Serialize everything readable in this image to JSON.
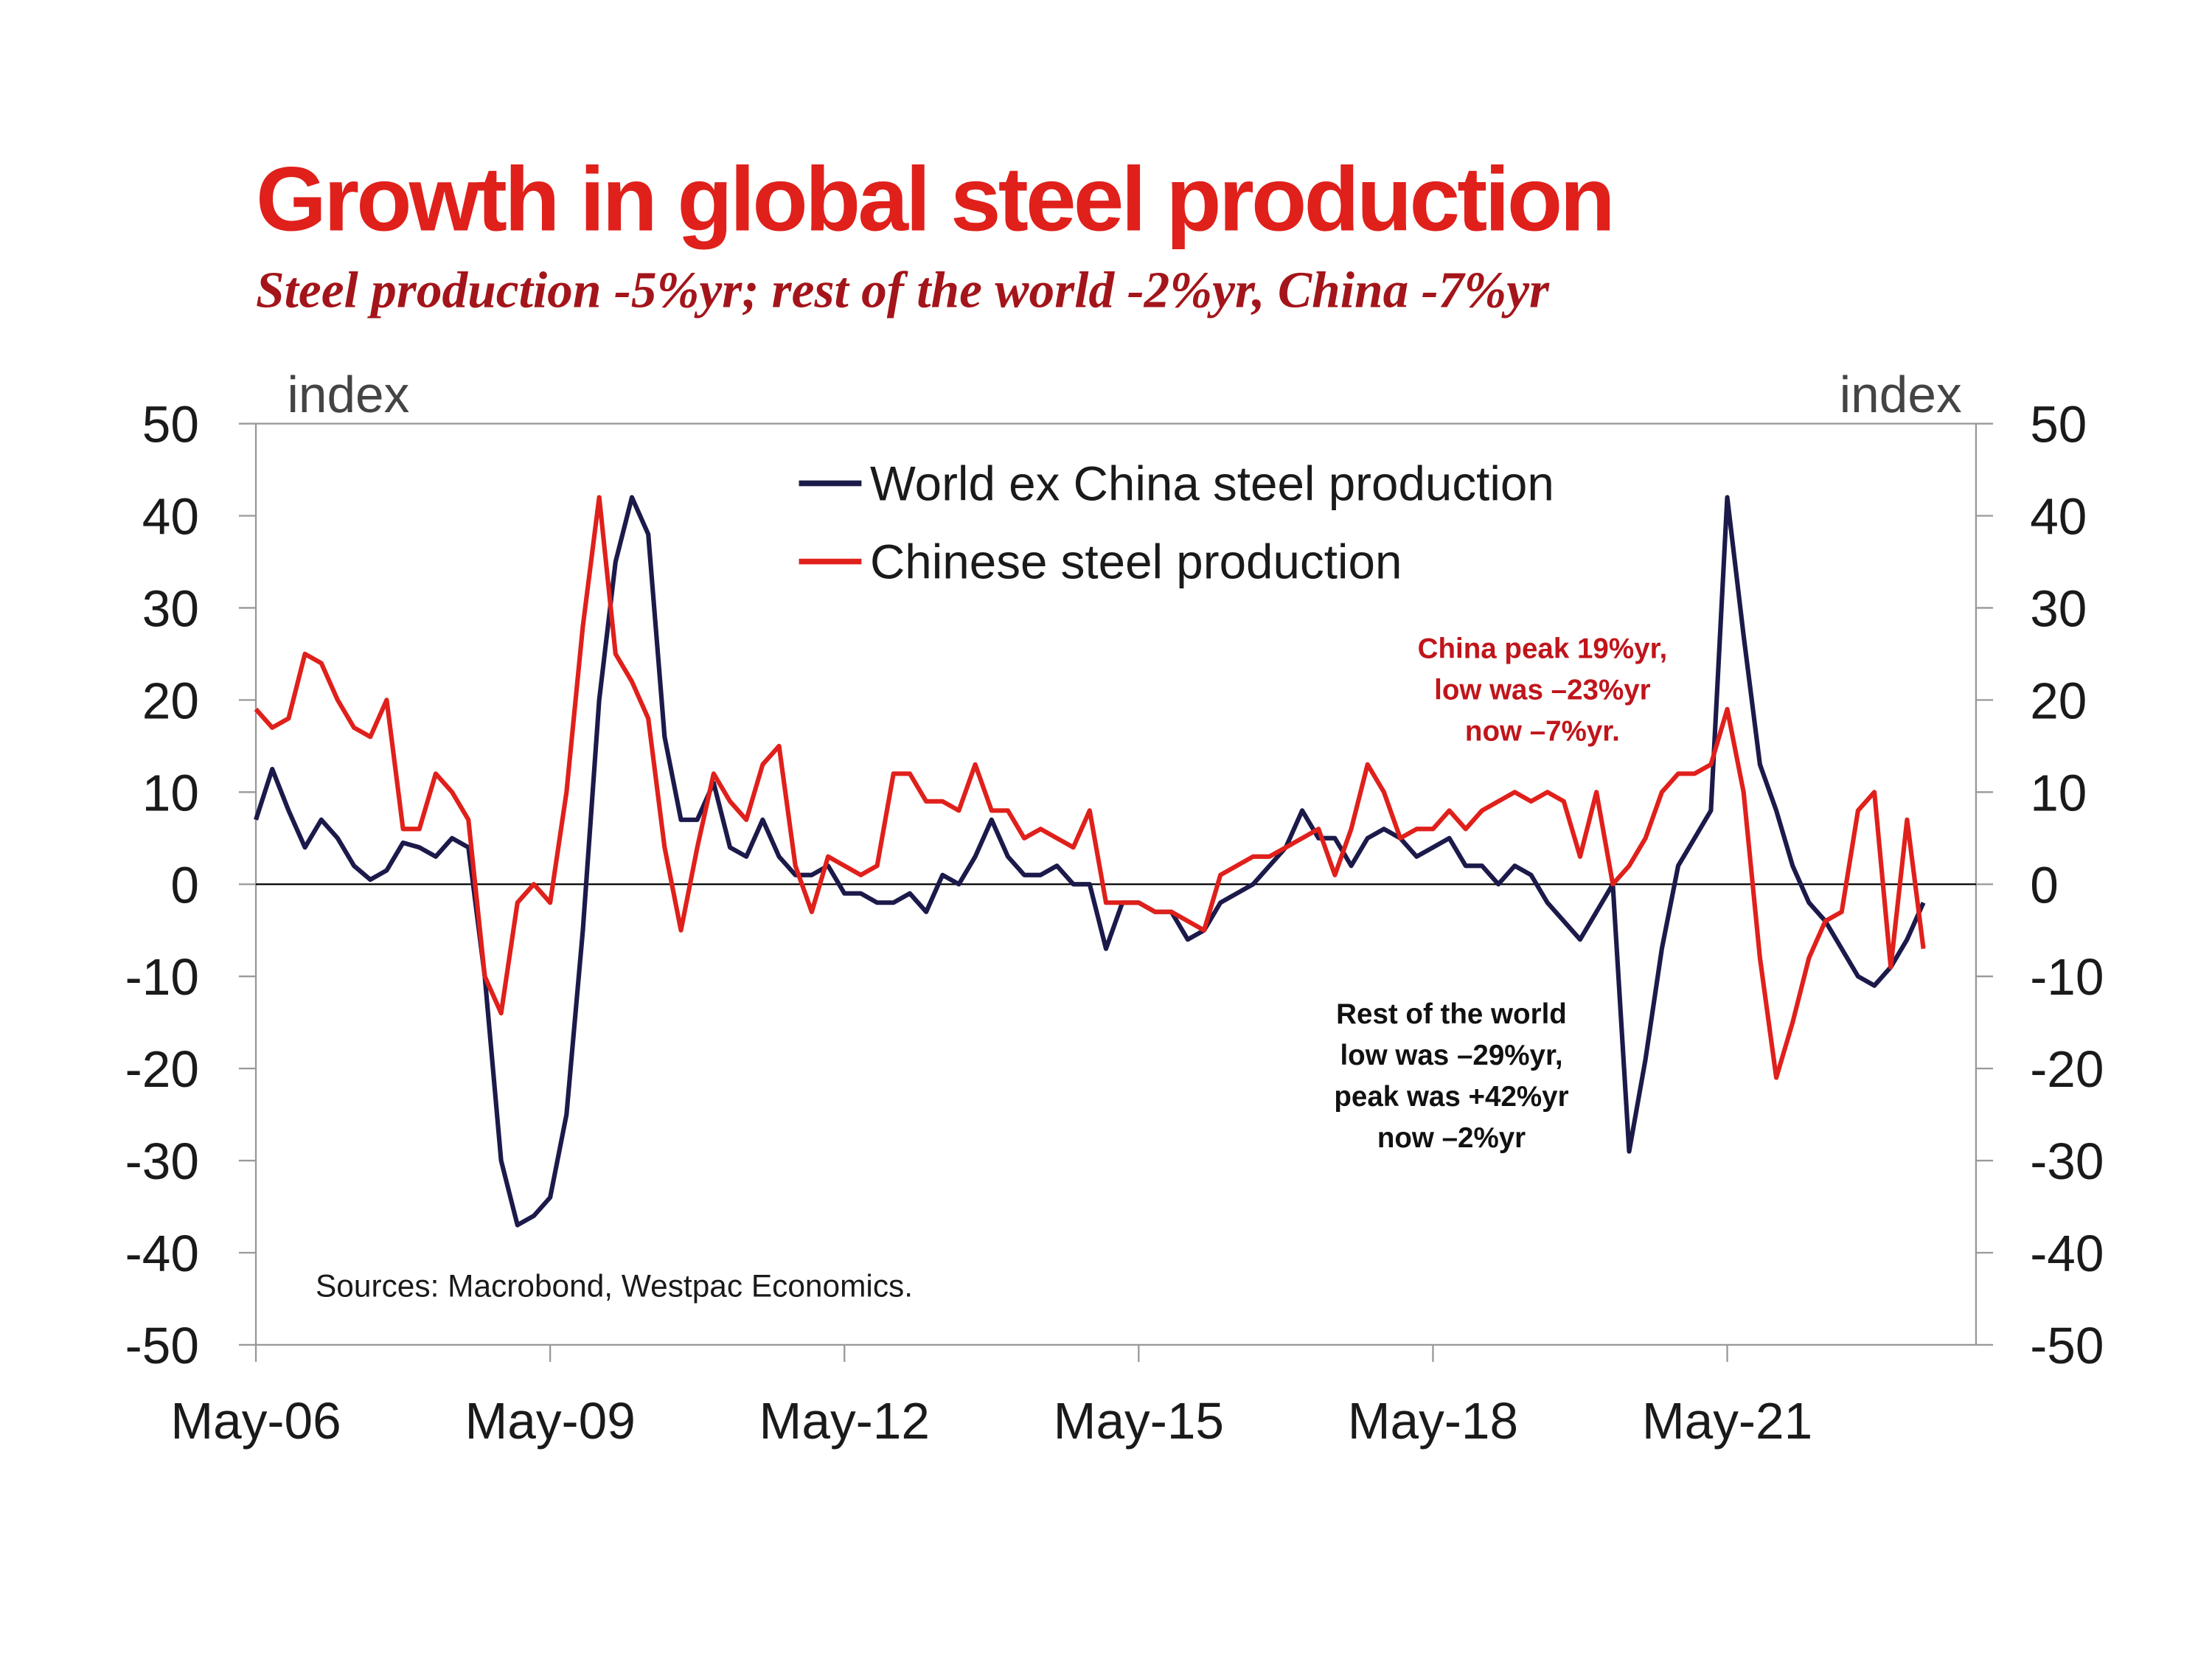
{
  "chart_data": {
    "type": "line",
    "title": "Growth in global steel production",
    "subtitle": "Steel production -5%yr; rest of the world -2%yr, China -7%yr",
    "y_label": "index",
    "y2_label": "index",
    "source": "Sources: Macrobond, Westpac Economics.",
    "x": [
      "May-06",
      "Jul-06",
      "Sep-06",
      "Nov-06",
      "Jan-07",
      "Mar-07",
      "May-07",
      "Jul-07",
      "Sep-07",
      "Nov-07",
      "Jan-08",
      "Mar-08",
      "May-08",
      "Jul-08",
      "Sep-08",
      "Nov-08",
      "Jan-09",
      "Mar-09",
      "May-09",
      "Jul-09",
      "Sep-09",
      "Nov-09",
      "Jan-10",
      "Mar-10",
      "May-10",
      "Jul-10",
      "Sep-10",
      "Nov-10",
      "Jan-11",
      "Mar-11",
      "May-11",
      "Jul-11",
      "Sep-11",
      "Nov-11",
      "Jan-12",
      "Mar-12",
      "May-12",
      "Jul-12",
      "Sep-12",
      "Nov-12",
      "Jan-13",
      "Mar-13",
      "May-13",
      "Jul-13",
      "Sep-13",
      "Nov-13",
      "Jan-14",
      "Mar-14",
      "May-14",
      "Jul-14",
      "Sep-14",
      "Nov-14",
      "Jan-15",
      "Mar-15",
      "May-15",
      "Jul-15",
      "Sep-15",
      "Nov-15",
      "Jan-16",
      "Mar-16",
      "May-16",
      "Jul-16",
      "Sep-16",
      "Nov-16",
      "Jan-17",
      "Mar-17",
      "May-17",
      "Jul-17",
      "Sep-17",
      "Nov-17",
      "Jan-18",
      "Mar-18",
      "May-18",
      "Jul-18",
      "Sep-18",
      "Nov-18",
      "Jan-19",
      "Mar-19",
      "May-19",
      "Jul-19",
      "Sep-19",
      "Nov-19",
      "Jan-20",
      "Mar-20",
      "May-20",
      "Jul-20",
      "Sep-20",
      "Nov-20",
      "Jan-21",
      "Mar-21",
      "May-21",
      "Jul-21",
      "Sep-21",
      "Nov-21",
      "Jan-22",
      "Mar-22",
      "May-22",
      "Jul-22",
      "Sep-22",
      "Nov-22",
      "Jan-23",
      "Mar-23",
      "May-23"
    ],
    "series": [
      {
        "name": "World ex China steel production",
        "color": "#1c1a4a",
        "values": [
          7,
          12.5,
          8,
          4,
          7,
          5,
          2,
          0.5,
          1.5,
          4.5,
          4,
          3,
          5,
          4,
          -10,
          -30,
          -37,
          -36,
          -34,
          -25,
          -5,
          20,
          35,
          42,
          38,
          16,
          7,
          7,
          11,
          4,
          3,
          7,
          3,
          1,
          1,
          2,
          -1,
          -1,
          -2,
          -2,
          -1,
          -3,
          1,
          0,
          3,
          7,
          3,
          1,
          1,
          2,
          0,
          0,
          -7,
          -2,
          -2,
          -3,
          -3,
          -6,
          -5,
          -2,
          -1,
          0,
          2,
          4,
          8,
          5,
          5,
          2,
          5,
          6,
          5,
          3,
          4,
          5,
          2,
          2,
          0,
          2,
          1,
          -2,
          -4,
          -6,
          -3,
          0,
          -29,
          -19,
          -7,
          2,
          5,
          8,
          42,
          27,
          13,
          8,
          2,
          -2,
          -4,
          -7,
          -10,
          -11,
          -9,
          -6,
          -2
        ]
      },
      {
        "name": "Chinese steel production",
        "color": "#e0201b",
        "values": [
          19,
          17,
          18,
          25,
          24,
          20,
          17,
          16,
          20,
          6,
          6,
          12,
          10,
          7,
          -10,
          -14,
          -2,
          0,
          -2,
          10,
          28,
          42,
          25,
          22,
          18,
          4,
          -5,
          4,
          12,
          9,
          7,
          13,
          15,
          2,
          -3,
          3,
          2,
          1,
          2,
          12,
          12,
          9,
          9,
          8,
          13,
          8,
          8,
          5,
          6,
          5,
          4,
          8,
          -2,
          -2,
          -2,
          -3,
          -3,
          -4,
          -5,
          1,
          2,
          3,
          3,
          4,
          5,
          6,
          1,
          6,
          13,
          10,
          5,
          6,
          6,
          8,
          6,
          8,
          9,
          10,
          9,
          10,
          9,
          3,
          10,
          0,
          2,
          5,
          10,
          12,
          12,
          13,
          19,
          10,
          -8,
          -21,
          -15,
          -8,
          -4,
          -3,
          8,
          10,
          -9,
          7,
          -7
        ]
      }
    ],
    "xticks": [
      "May-06",
      "May-09",
      "May-12",
      "May-15",
      "May-18",
      "May-21"
    ],
    "ylim": [
      -50,
      50
    ],
    "yticks": [
      50,
      40,
      30,
      20,
      10,
      0,
      -10,
      -20,
      -30,
      -40,
      -50
    ],
    "annotations": [
      {
        "lines": [
          "China peak 19%yr,",
          "low was –23%yr",
          "now –7%yr."
        ],
        "color": "#c0151b"
      },
      {
        "lines": [
          "Rest of the world",
          "low was –29%yr,",
          "peak was +42%yr",
          "now –2%yr"
        ],
        "color": "#111"
      }
    ]
  }
}
